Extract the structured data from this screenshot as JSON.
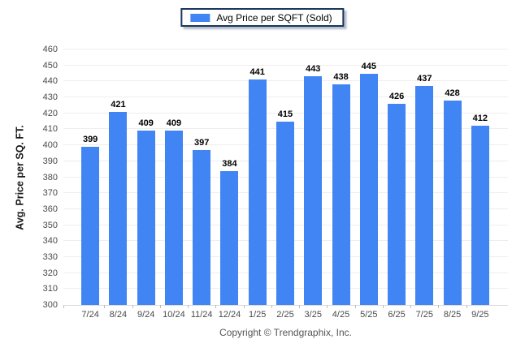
{
  "legend": {
    "label": "Avg Price per SQFT (Sold)",
    "swatch_color": "#4184f3"
  },
  "chart_data": {
    "type": "bar",
    "title": "",
    "categories": [
      "7/24",
      "8/24",
      "9/24",
      "10/24",
      "11/24",
      "12/24",
      "1/25",
      "2/25",
      "3/25",
      "4/25",
      "5/25",
      "6/25",
      "7/25",
      "8/25",
      "9/25"
    ],
    "values": [
      399,
      421,
      409,
      409,
      397,
      384,
      441,
      415,
      443,
      438,
      445,
      426,
      437,
      428,
      412
    ],
    "series_name": "Avg Price per SQFT (Sold)",
    "xlabel": "",
    "ylabel": "Avg. Price per SQ. FT.",
    "ylim": [
      300,
      460
    ],
    "ytick_step": 10,
    "grid": true,
    "legend_position": "top-center",
    "bar_color": "#4184f3"
  },
  "colors": {
    "bar": "#4184f3",
    "legend_border": "#17365d",
    "gridline": "#f0eded",
    "axis_baseline": "#dcdada",
    "tick_label": "#4a4a4a",
    "value_label": "#000000"
  },
  "footer": {
    "copyright": "Copyright © Trendgraphix, Inc."
  }
}
